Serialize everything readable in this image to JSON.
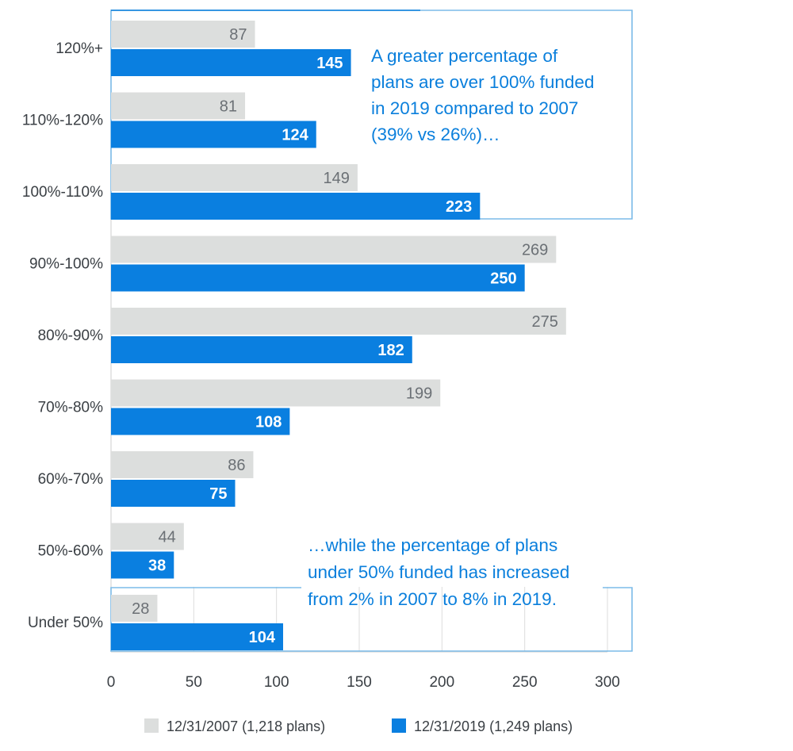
{
  "chart_data": {
    "type": "bar",
    "orientation": "horizontal",
    "title": "",
    "xlabel": "",
    "ylabel": "",
    "categories": [
      "120%+",
      "110%-120%",
      "100%-110%",
      "90%-100%",
      "80%-90%",
      "70%-80%",
      "60%-70%",
      "50%-60%",
      "Under 50%"
    ],
    "series": [
      {
        "name": "12/31/2007 (1,218 plans)",
        "color": "#dcdedd",
        "label_color": "#6b7075",
        "values": [
          87,
          81,
          149,
          269,
          275,
          199,
          86,
          44,
          28
        ]
      },
      {
        "name": "12/31/2019 (1,249 plans)",
        "color": "#0a7fe0",
        "label_color": "#ffffff",
        "values": [
          145,
          124,
          223,
          250,
          182,
          108,
          75,
          38,
          104
        ]
      }
    ],
    "xlim": [
      0,
      300
    ],
    "x_ticks": [
      0,
      50,
      100,
      150,
      200,
      250,
      300
    ],
    "x_tick_labels": [
      "0",
      "50",
      "100",
      "150",
      "200",
      "250",
      "300"
    ],
    "grid": true,
    "legend_position": "bottom",
    "annotations": [
      {
        "name": "over-100-annotation",
        "lines": [
          "A greater percentage of",
          "plans are over 100% funded",
          "in 2019 compared to 2007",
          "(39% vs 26%)…"
        ],
        "highlights_categories": [
          "120%+",
          "110%-120%",
          "100%-110%"
        ]
      },
      {
        "name": "under-50-annotation",
        "lines": [
          "…while the percentage of plans",
          "under 50% funded has increased",
          "from 2% in 2007 to 8% in 2019."
        ],
        "highlights_categories": [
          "Under 50%"
        ]
      }
    ],
    "annotation_color": "#0a7fdc",
    "box_border_color": "#7bbbe8"
  }
}
